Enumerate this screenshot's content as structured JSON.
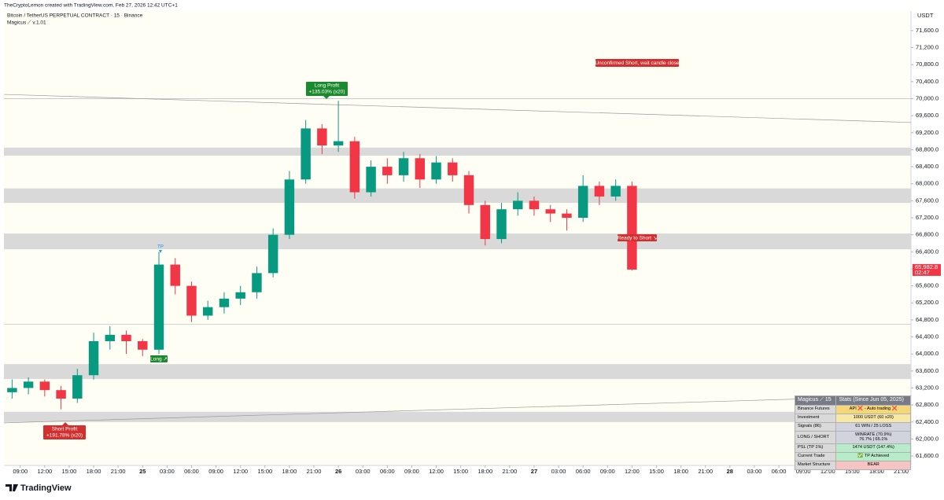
{
  "header": {
    "credit": "TheCryptoLemon created with TradingView.com, Feb 27, 2026 12:42 UTC+1",
    "symbol": "Bitcoin / TetherUS PERPETUAL CONTRACT · 15 · Binance",
    "indicator": "Magicus ⟋ v.1.01"
  },
  "chart_data": {
    "type": "candlestick",
    "y_unit": "USDT",
    "x": [
      8,
      10,
      12,
      14,
      16,
      18,
      20,
      22,
      24,
      26,
      28,
      30,
      32,
      34,
      36,
      38,
      40,
      42,
      44,
      46,
      48,
      50,
      52,
      54,
      56,
      58,
      60,
      62,
      64,
      66,
      68,
      70,
      72,
      74,
      76,
      78,
      80,
      82,
      84
    ],
    "open": [
      63100,
      63200,
      63350,
      63150,
      62950,
      63500,
      64300,
      64450,
      64300,
      64100,
      66100,
      65600,
      64900,
      65100,
      65300,
      65450,
      65900,
      66800,
      68100,
      69300,
      68900,
      69000,
      67800,
      68400,
      68200,
      68600,
      68100,
      68500,
      68200,
      67500,
      66700,
      67400,
      67600,
      67400,
      67300,
      67200,
      67950,
      67700,
      67950
    ],
    "high": [
      63400,
      63450,
      63400,
      63250,
      63650,
      64500,
      64650,
      64550,
      64350,
      66400,
      66250,
      65700,
      65250,
      65450,
      65600,
      66050,
      66950,
      68300,
      69500,
      69400,
      69950,
      69100,
      68550,
      68600,
      68750,
      68700,
      68650,
      68600,
      68300,
      67600,
      67550,
      67800,
      67700,
      67500,
      67400,
      68200,
      68050,
      68100,
      68050
    ],
    "low": [
      62950,
      63050,
      63000,
      62700,
      62850,
      63400,
      64100,
      64000,
      63950,
      64000,
      65400,
      64750,
      64800,
      64950,
      65150,
      65300,
      65800,
      66700,
      68000,
      68700,
      68750,
      67650,
      67700,
      68000,
      68050,
      67900,
      68000,
      68050,
      67300,
      66550,
      66600,
      67250,
      67250,
      67100,
      66900,
      67100,
      67500,
      67600,
      65960
    ],
    "close": [
      63200,
      63350,
      63150,
      62950,
      63500,
      64300,
      64450,
      64300,
      64100,
      66100,
      65600,
      64900,
      65100,
      65300,
      65450,
      65900,
      66800,
      68100,
      69300,
      68900,
      69000,
      67800,
      68400,
      68200,
      68600,
      68100,
      68500,
      68200,
      67500,
      66700,
      67400,
      67600,
      67400,
      67300,
      67200,
      67950,
      67700,
      67950,
      65982.8
    ],
    "up_color": "#089981",
    "down_color": "#f23645",
    "xlim": [
      7,
      118.2
    ],
    "ylim": [
      61380,
      72060
    ],
    "xticks": [
      {
        "value": 9,
        "label": "09:00"
      },
      {
        "value": 12,
        "label": "12:00"
      },
      {
        "value": 15,
        "label": "15:00"
      },
      {
        "value": 18,
        "label": "18:00"
      },
      {
        "value": 21,
        "label": "21:00"
      },
      {
        "value": 24,
        "label": "25"
      },
      {
        "value": 27,
        "label": "03:00"
      },
      {
        "value": 30,
        "label": "06:00"
      },
      {
        "value": 33,
        "label": "09:00"
      },
      {
        "value": 36,
        "label": "12:00"
      },
      {
        "value": 39,
        "label": "15:00"
      },
      {
        "value": 42,
        "label": "18:00"
      },
      {
        "value": 45,
        "label": "21:00"
      },
      {
        "value": 48,
        "label": "26"
      },
      {
        "value": 51,
        "label": "03:00"
      },
      {
        "value": 54,
        "label": "06:00"
      },
      {
        "value": 57,
        "label": "09:00"
      },
      {
        "value": 60,
        "label": "12:00"
      },
      {
        "value": 63,
        "label": "15:00"
      },
      {
        "value": 66,
        "label": "18:00"
      },
      {
        "value": 69,
        "label": "21:00"
      },
      {
        "value": 72,
        "label": "27"
      },
      {
        "value": 75,
        "label": "03:00"
      },
      {
        "value": 78,
        "label": "06:00"
      },
      {
        "value": 81,
        "label": "09:00"
      },
      {
        "value": 84,
        "label": "12:00"
      },
      {
        "value": 87,
        "label": "15:00"
      },
      {
        "value": 90,
        "label": "18:00"
      },
      {
        "value": 93,
        "label": "21:00"
      },
      {
        "value": 96,
        "label": "28"
      },
      {
        "value": 99,
        "label": "03:00"
      },
      {
        "value": 102,
        "label": "06:00"
      },
      {
        "value": 105,
        "label": "09:00"
      },
      {
        "value": 108,
        "label": "12:00"
      },
      {
        "value": 111,
        "label": "15:00"
      },
      {
        "value": 114,
        "label": "18:00"
      },
      {
        "value": 117,
        "label": "21:00"
      }
    ],
    "yticks": [
      {
        "value": 61600,
        "label": "61,600.0"
      },
      {
        "value": 62000,
        "label": "62,000.0"
      },
      {
        "value": 62400,
        "label": "62,400.0"
      },
      {
        "value": 62800,
        "label": "62,800.0"
      },
      {
        "value": 63200,
        "label": "63,200.0"
      },
      {
        "value": 63600,
        "label": "63,600.0"
      },
      {
        "value": 64000,
        "label": "64,000.0"
      },
      {
        "value": 64400,
        "label": "64,400.0"
      },
      {
        "value": 64800,
        "label": "64,800.0"
      },
      {
        "value": 65200,
        "label": "65,200.0"
      },
      {
        "value": 65600,
        "label": "65,600.0"
      },
      {
        "value": 66000,
        "label": "66,000.0"
      },
      {
        "value": 66400,
        "label": "66,400.0"
      },
      {
        "value": 66800,
        "label": "66,800.0"
      },
      {
        "value": 67200,
        "label": "67,200.0"
      },
      {
        "value": 67600,
        "label": "67,600.0"
      },
      {
        "value": 68000,
        "label": "68,000.0"
      },
      {
        "value": 68400,
        "label": "68,400.0"
      },
      {
        "value": 68800,
        "label": "68,800.0"
      },
      {
        "value": 69200,
        "label": "69,200.0"
      },
      {
        "value": 69600,
        "label": "69,600.0"
      },
      {
        "value": 70000,
        "label": "70,000.0"
      },
      {
        "value": 70400,
        "label": "70,400.0"
      },
      {
        "value": 70800,
        "label": "70,800.0"
      },
      {
        "value": 71200,
        "label": "71,200.0"
      },
      {
        "value": 71600,
        "label": "71,600.0"
      }
    ],
    "zones": [
      [
        68660,
        68850
      ],
      [
        67550,
        67890
      ],
      [
        66460,
        66830
      ],
      [
        63410,
        63760
      ],
      [
        62400,
        62640
      ]
    ],
    "levels": [
      70000,
      64700
    ],
    "lines": [
      [
        70100,
        69440
      ],
      [
        62380,
        63020
      ]
    ],
    "last_price": {
      "value": 65982.8,
      "label": "65,982.8"
    },
    "countdown": "02:47"
  },
  "annotations": {
    "unconfirmed": "Unconfirmed Short, wait candle close",
    "long_profit": [
      "Long Profit",
      "+135.03% (x20)"
    ],
    "short_profit": [
      "Short Profit",
      "+191.78% (x20)"
    ],
    "long": "Long ↗",
    "ready_short": "Ready to Short ↘",
    "tp": "TP"
  },
  "table": {
    "header": [
      "Magicus ⟋ 15",
      "Stats (Since Jun 05, 2025)"
    ],
    "rows": [
      [
        "Binance Futures",
        "API ❌ - Auto trading ❌"
      ],
      [
        "Investment",
        "1000 USDT (60 x20)"
      ],
      [
        "Signals (86)",
        "61 WIN / 25 LOSS"
      ],
      [
        "LONG / SHORT",
        "WINRATE (70.9%)",
        "76.7% | 65.1%"
      ],
      [
        "PSL (TP 1%)",
        "1474 USDT (147.4%)"
      ],
      [
        "Current Trade",
        "✅ TP Achieved"
      ],
      [
        "Market Structure",
        "BEAR"
      ]
    ]
  },
  "footer": {
    "brand": "TradingView"
  }
}
